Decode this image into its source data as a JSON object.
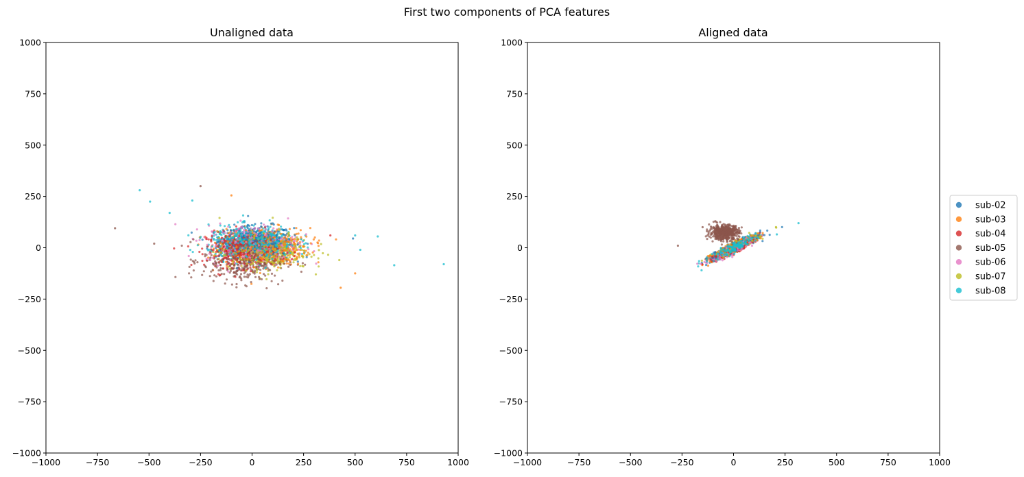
{
  "figure": {
    "suptitle": "First two components of PCA features"
  },
  "chart_data": [
    {
      "type": "scatter",
      "title": "Unaligned data",
      "xlim": [
        -1000,
        1000
      ],
      "ylim": [
        -1000,
        1000
      ],
      "xticks": [
        -1000,
        -750,
        -500,
        -250,
        0,
        250,
        500,
        750,
        1000
      ],
      "yticks": [
        -1000,
        -750,
        -500,
        -250,
        0,
        250,
        500,
        750,
        1000
      ],
      "xtick_labels": [
        "−1000",
        "−750",
        "−500",
        "−250",
        "0",
        "250",
        "500",
        "750",
        "1000"
      ],
      "ytick_labels": [
        "−1000",
        "−750",
        "−500",
        "−250",
        "0",
        "250",
        "500",
        "750",
        "1000"
      ],
      "grid": false,
      "series": [
        {
          "name": "sub-02",
          "color": "#1f77b4",
          "center": [
            20,
            30
          ],
          "spread": [
            90,
            38
          ],
          "corr": 0,
          "count": 420
        },
        {
          "name": "sub-03",
          "color": "#ff7f0e",
          "center": [
            60,
            5
          ],
          "spread": [
            110,
            45
          ],
          "corr": 0,
          "count": 420
        },
        {
          "name": "sub-04",
          "color": "#d62728",
          "center": [
            -40,
            -10
          ],
          "spread": [
            90,
            42
          ],
          "corr": 0,
          "count": 420
        },
        {
          "name": "sub-05",
          "color": "#8c564b",
          "center": [
            -40,
            -60
          ],
          "spread": [
            100,
            55
          ],
          "corr": 0,
          "count": 420
        },
        {
          "name": "sub-06",
          "color": "#e377c2",
          "center": [
            0,
            20
          ],
          "spread": [
            110,
            45
          ],
          "corr": 0,
          "count": 420
        },
        {
          "name": "sub-07",
          "color": "#bcbd22",
          "center": [
            60,
            -15
          ],
          "spread": [
            110,
            45
          ],
          "corr": 0,
          "count": 420
        },
        {
          "name": "sub-08",
          "color": "#17becf",
          "center": [
            0,
            25
          ],
          "spread": [
            105,
            40
          ],
          "corr": 0,
          "count": 480
        }
      ],
      "outliers": [
        {
          "series": "sub-08",
          "x": 930,
          "y": -80
        },
        {
          "series": "sub-08",
          "x": 690,
          "y": -85
        },
        {
          "series": "sub-08",
          "x": 610,
          "y": 55
        },
        {
          "series": "sub-08",
          "x": 525,
          "y": -10
        },
        {
          "series": "sub-08",
          "x": 500,
          "y": 60
        },
        {
          "series": "sub-08",
          "x": -545,
          "y": 280
        },
        {
          "series": "sub-08",
          "x": -495,
          "y": 225
        },
        {
          "series": "sub-08",
          "x": -400,
          "y": 170
        },
        {
          "series": "sub-08",
          "x": -290,
          "y": 230
        },
        {
          "series": "sub-05",
          "x": -665,
          "y": 95
        },
        {
          "series": "sub-05",
          "x": -250,
          "y": 300
        },
        {
          "series": "sub-05",
          "x": -475,
          "y": 20
        },
        {
          "series": "sub-03",
          "x": 430,
          "y": -195
        },
        {
          "series": "sub-03",
          "x": -100,
          "y": 255
        },
        {
          "series": "sub-03",
          "x": 500,
          "y": -125
        },
        {
          "series": "sub-02",
          "x": 490,
          "y": 45
        },
        {
          "series": "sub-04",
          "x": 380,
          "y": 60
        }
      ]
    },
    {
      "type": "scatter",
      "title": "Aligned data",
      "xlim": [
        -1000,
        1000
      ],
      "ylim": [
        -1000,
        1000
      ],
      "xticks": [
        -1000,
        -750,
        -500,
        -250,
        0,
        250,
        500,
        750,
        1000
      ],
      "yticks": [
        -1000,
        -750,
        -500,
        -250,
        0,
        250,
        500,
        750,
        1000
      ],
      "xtick_labels": [
        "−1000",
        "−750",
        "−500",
        "−250",
        "0",
        "250",
        "500",
        "750",
        "1000"
      ],
      "ytick_labels": [
        "−1000",
        "−750",
        "−500",
        "−250",
        "0",
        "250",
        "500",
        "750",
        "1000"
      ],
      "grid": false,
      "series": [
        {
          "name": "sub-02",
          "color": "#1f77b4",
          "center": [
            0,
            0
          ],
          "spread": [
            55,
            28
          ],
          "corr": 0.92,
          "count": 300
        },
        {
          "name": "sub-03",
          "color": "#ff7f0e",
          "center": [
            0,
            0
          ],
          "spread": [
            55,
            28
          ],
          "corr": 0.92,
          "count": 300
        },
        {
          "name": "sub-04",
          "color": "#d62728",
          "center": [
            -10,
            -8
          ],
          "spread": [
            55,
            28
          ],
          "corr": 0.92,
          "count": 300
        },
        {
          "name": "sub-05",
          "color": "#8c564b",
          "center": [
            -45,
            75
          ],
          "spread": [
            35,
            18
          ],
          "corr": 0,
          "count": 520
        },
        {
          "name": "sub-06",
          "color": "#e377c2",
          "center": [
            -10,
            -10
          ],
          "spread": [
            55,
            28
          ],
          "corr": 0.92,
          "count": 300
        },
        {
          "name": "sub-07",
          "color": "#bcbd22",
          "center": [
            10,
            5
          ],
          "spread": [
            55,
            28
          ],
          "corr": 0.92,
          "count": 300
        },
        {
          "name": "sub-08",
          "color": "#17becf",
          "center": [
            0,
            0
          ],
          "spread": [
            55,
            28
          ],
          "corr": 0.92,
          "count": 380
        }
      ],
      "outliers": [
        {
          "series": "sub-08",
          "x": 315,
          "y": 120
        },
        {
          "series": "sub-08",
          "x": 210,
          "y": 65
        },
        {
          "series": "sub-08",
          "x": -155,
          "y": -110
        },
        {
          "series": "sub-05",
          "x": -270,
          "y": 10
        },
        {
          "series": "sub-05",
          "x": -150,
          "y": 100
        }
      ]
    }
  ],
  "legend": {
    "placement": "center-right",
    "entries": [
      "sub-02",
      "sub-03",
      "sub-04",
      "sub-05",
      "sub-06",
      "sub-07",
      "sub-08"
    ]
  }
}
